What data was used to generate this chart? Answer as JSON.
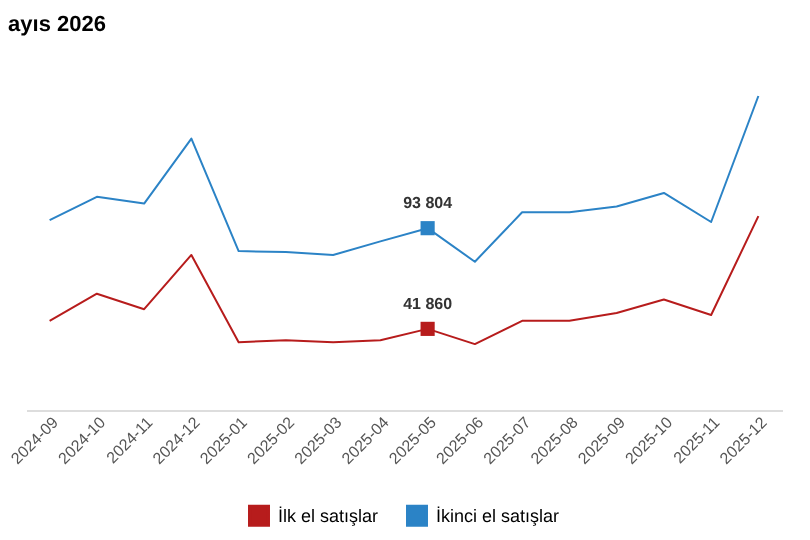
{
  "chart_data": {
    "type": "line",
    "title": "ayıs 2026",
    "categories": [
      "2024-09",
      "2024-10",
      "2024-11",
      "2024-12",
      "2025-01",
      "2025-02",
      "2025-03",
      "2025-04",
      "2025-05",
      "2025-06",
      "2025-07",
      "2025-08",
      "2025-09",
      "2025-10",
      "2025-11",
      "2025-12"
    ],
    "series": [
      {
        "name": "İlk el satışlar",
        "color": "#b71c1c",
        "values": [
          46000,
          60000,
          52000,
          80000,
          35000,
          36000,
          35000,
          36000,
          41860,
          34000,
          46000,
          46000,
          50000,
          57000,
          49000,
          100000
        ],
        "value_labels": [
          null,
          null,
          null,
          null,
          null,
          null,
          null,
          null,
          "41 860",
          null,
          null,
          null,
          null,
          null,
          null,
          null
        ]
      },
      {
        "name": "İkinci el satışlar",
        "color": "#2b83c6",
        "values": [
          98000,
          110000,
          106500,
          140000,
          82000,
          81500,
          80000,
          87000,
          93804,
          76500,
          102000,
          102000,
          105000,
          112000,
          97000,
          162000
        ],
        "value_labels": [
          null,
          null,
          null,
          null,
          null,
          null,
          null,
          null,
          "93 804",
          null,
          null,
          null,
          null,
          null,
          null,
          null
        ]
      }
    ],
    "tick_labels": "x",
    "grid": false,
    "legend": "bottom"
  }
}
